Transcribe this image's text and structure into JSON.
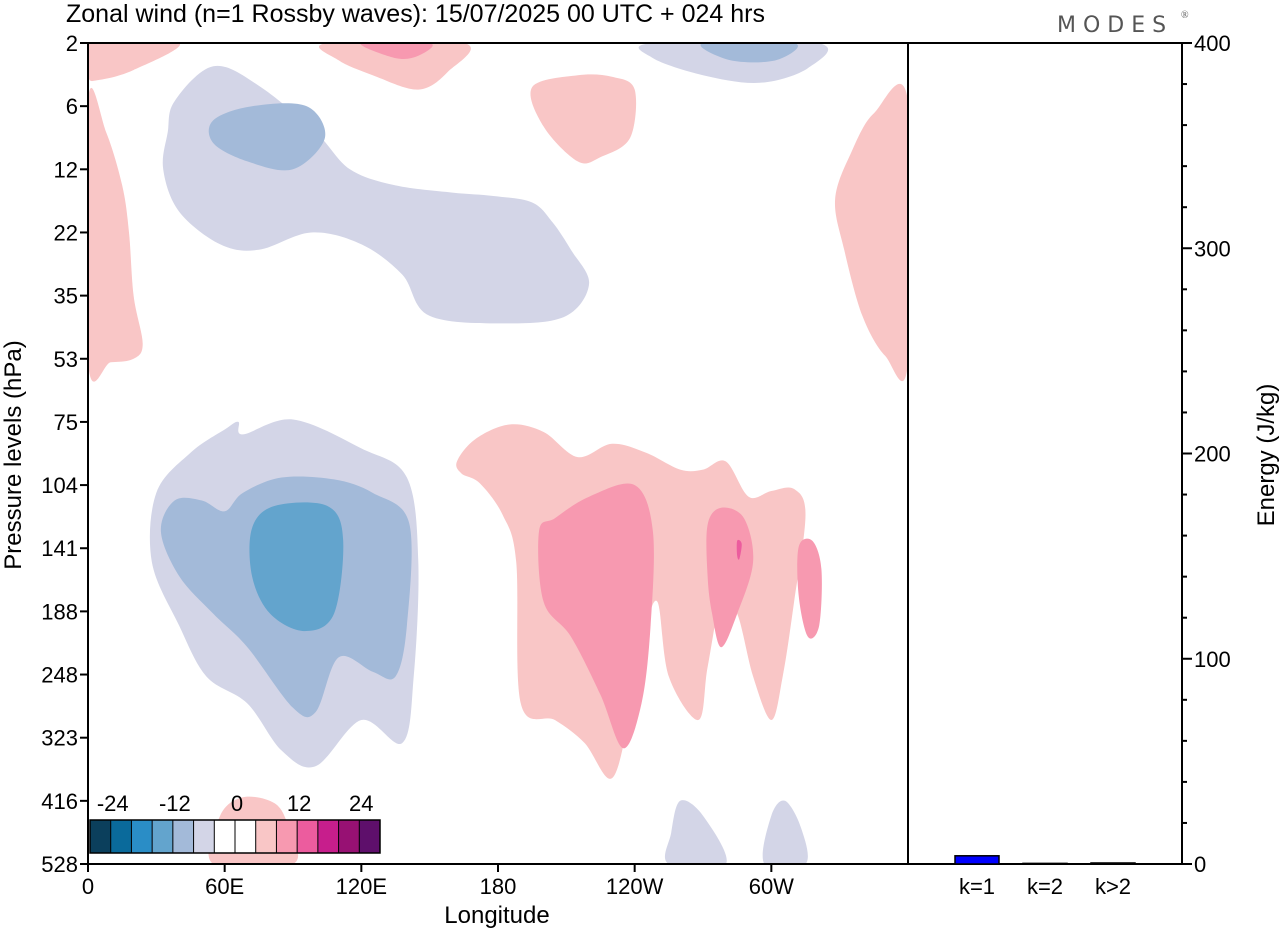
{
  "chart_data": [
    {
      "type": "heatmap",
      "title": "Zonal wind (n=1 Rossby waves):  15/07/2025  00 UTC  + 024 hrs",
      "brand": "MODES",
      "xlabel": "Longitude",
      "ylabel": "Pressure levels (hPa)",
      "x_ticks": [
        {
          "lon": 0,
          "label": "0"
        },
        {
          "lon": 60,
          "label": "60E"
        },
        {
          "lon": 120,
          "label": "120E"
        },
        {
          "lon": 180,
          "label": "180"
        },
        {
          "lon": 240,
          "label": "120W"
        },
        {
          "lon": 300,
          "label": "60W"
        }
      ],
      "xlim": [
        0,
        360
      ],
      "y_levels": [
        "2",
        "6",
        "12",
        "22",
        "35",
        "53",
        "75",
        "104",
        "141",
        "188",
        "248",
        "323",
        "416",
        "528"
      ],
      "colorbar": {
        "tick_labels": [
          "-24",
          "-12",
          "0",
          "12",
          "24"
        ],
        "colors": [
          "#0b3f5c",
          "#0a6a9b",
          "#2a8dc6",
          "#63a4cd",
          "#a3bad9",
          "#d3d5e7",
          "#ffffff",
          "#ffffff",
          "#f9c6c6",
          "#f799b0",
          "#ec5c9e",
          "#c71e8c",
          "#971173",
          "#5e0f6b"
        ]
      },
      "features": [
        {
          "name": "neg-upper-outer",
          "sign": -1,
          "level": 1,
          "points": [
            [
              38,
              5.5
            ],
            [
              55,
              3
            ],
            [
              75,
              4.2
            ],
            [
              100,
              8
            ],
            [
              115,
              12
            ],
            [
              135,
              14
            ],
            [
              160,
              15
            ],
            [
              178,
              15.5
            ],
            [
              195,
              16.5
            ],
            [
              204,
              20
            ],
            [
              212,
              25
            ],
            [
              220,
              32
            ],
            [
              210,
              40
            ],
            [
              185,
              42
            ],
            [
              150,
              40
            ],
            [
              138,
              30
            ],
            [
              120,
              24
            ],
            [
              98,
              22
            ],
            [
              75,
              25
            ],
            [
              58,
              24
            ],
            [
              40,
              18
            ],
            [
              33,
              12
            ],
            [
              35,
              8
            ]
          ]
        },
        {
          "name": "neg-upper-inner",
          "sign": -1,
          "level": 2,
          "points": [
            [
              55,
              7
            ],
            [
              72,
              6
            ],
            [
              96,
              6
            ],
            [
              104,
              8.5
            ],
            [
              90,
              12
            ],
            [
              70,
              11
            ],
            [
              55,
              9
            ]
          ]
        },
        {
          "name": "neg-top-right",
          "sign": -1,
          "level": 1,
          "points": [
            [
              248,
              2
            ],
            [
              320,
              2
            ],
            [
              316,
              3.1
            ],
            [
              295,
              4
            ],
            [
              270,
              3.5
            ],
            [
              248,
              2.6
            ]
          ]
        },
        {
          "name": "neg-top-right-inner",
          "sign": -1,
          "level": 2,
          "points": [
            [
              270,
              2
            ],
            [
              310,
              2
            ],
            [
              302,
              2.7
            ],
            [
              282,
              2.7
            ]
          ]
        },
        {
          "name": "neg-mid-outer",
          "sign": -1,
          "level": 1,
          "points": [
            [
              30,
              108
            ],
            [
              45,
              88
            ],
            [
              60,
              78
            ],
            [
              66,
              75
            ],
            [
              68,
              80
            ],
            [
              90,
              74
            ],
            [
              120,
              86
            ],
            [
              140,
              100
            ],
            [
              145,
              150
            ],
            [
              143,
              250
            ],
            [
              138,
              330
            ],
            [
              120,
              300
            ],
            [
              100,
              362
            ],
            [
              85,
              340
            ],
            [
              70,
              280
            ],
            [
              52,
              250
            ],
            [
              40,
              200
            ],
            [
              28,
              150
            ]
          ]
        },
        {
          "name": "neg-mid-mid",
          "sign": -1,
          "level": 2,
          "points": [
            [
              32,
              130
            ],
            [
              38,
              112
            ],
            [
              50,
              112
            ],
            [
              60,
              118
            ],
            [
              68,
              108
            ],
            [
              85,
              100
            ],
            [
              108,
              101
            ],
            [
              125,
              108
            ],
            [
              141,
              125
            ],
            [
              140,
              200
            ],
            [
              135,
              250
            ],
            [
              125,
              245
            ],
            [
              110,
              230
            ],
            [
              100,
              290
            ],
            [
              90,
              285
            ],
            [
              70,
              220
            ],
            [
              55,
              190
            ],
            [
              40,
              160
            ]
          ]
        },
        {
          "name": "neg-mid-inner",
          "sign": -1,
          "level": 3,
          "points": [
            [
              72,
              128
            ],
            [
              82,
              115
            ],
            [
              105,
              115
            ],
            [
              112,
              135
            ],
            [
              108,
              190
            ],
            [
              95,
              205
            ],
            [
              80,
              190
            ],
            [
              72,
              160
            ]
          ]
        },
        {
          "name": "neg-bottom-left",
          "sign": -1,
          "level": 1,
          "points": [
            [
              255,
              528
            ],
            [
              256,
              470
            ],
            [
              260,
              416
            ],
            [
              270,
              440
            ],
            [
              280,
              528
            ]
          ]
        },
        {
          "name": "neg-bottom-right",
          "sign": -1,
          "level": 1,
          "points": [
            [
              297,
              528
            ],
            [
              300,
              440
            ],
            [
              306,
              416
            ],
            [
              313,
              460
            ],
            [
              315,
              528
            ]
          ]
        },
        {
          "name": "pos-left-upper",
          "sign": 1,
          "level": 1,
          "points": [
            [
              0,
              5.5
            ],
            [
              8,
              8
            ],
            [
              15,
              14
            ],
            [
              18,
              22
            ],
            [
              20,
              35
            ],
            [
              24,
              48
            ],
            [
              20,
              53
            ],
            [
              10,
              54
            ],
            [
              0,
              54
            ]
          ]
        },
        {
          "name": "pos-top-left",
          "sign": 1,
          "level": 1,
          "points": [
            [
              0,
              2
            ],
            [
              40,
              2
            ],
            [
              20,
              3.2
            ],
            [
              5,
              3.8
            ],
            [
              0,
              3.6
            ]
          ]
        },
        {
          "name": "pos-top-mid",
          "sign": 1,
          "level": 1,
          "points": [
            [
              105,
              2
            ],
            [
              165,
              2
            ],
            [
              158,
              3.3
            ],
            [
              145,
              4.5
            ],
            [
              125,
              3.5
            ],
            [
              110,
              2.7
            ]
          ]
        },
        {
          "name": "pos-top-mid-inner",
          "sign": 1,
          "level": 2,
          "points": [
            [
              120,
              2
            ],
            [
              150,
              2
            ],
            [
              145,
              2.5
            ],
            [
              135,
              2.6
            ]
          ]
        },
        {
          "name": "pos-upper-mid",
          "sign": 1,
          "level": 1,
          "points": [
            [
              195,
              4.3
            ],
            [
              215,
              3.5
            ],
            [
              230,
              3.6
            ],
            [
              240,
              4.5
            ],
            [
              238,
              8.5
            ],
            [
              225,
              10.5
            ],
            [
              215,
              11
            ],
            [
              200,
              7.5
            ]
          ]
        },
        {
          "name": "pos-right-edge",
          "sign": 1,
          "level": 1,
          "points": [
            [
              360,
              5.5
            ],
            [
              345,
              6.5
            ],
            [
              335,
              10
            ],
            [
              328,
              16
            ],
            [
              332,
              25
            ],
            [
              340,
              40
            ],
            [
              350,
              52
            ],
            [
              360,
              54
            ]
          ]
        },
        {
          "name": "pos-mid-outer",
          "sign": 1,
          "level": 1,
          "points": [
            [
              162,
              92
            ],
            [
              170,
              82
            ],
            [
              185,
              76
            ],
            [
              200,
              79
            ],
            [
              215,
              90
            ],
            [
              230,
              84
            ],
            [
              245,
              88
            ],
            [
              260,
              96
            ],
            [
              270,
              96
            ],
            [
              280,
              92
            ],
            [
              290,
              110
            ],
            [
              300,
              107
            ],
            [
              310,
              106
            ],
            [
              315,
              120
            ],
            [
              310,
              180
            ],
            [
              305,
              250
            ],
            [
              300,
              300
            ],
            [
              292,
              250
            ],
            [
              285,
              190
            ],
            [
              278,
              180
            ],
            [
              272,
              240
            ],
            [
              268,
              300
            ],
            [
              255,
              250
            ],
            [
              250,
              180
            ],
            [
              244,
              210
            ],
            [
              238,
              290
            ],
            [
              230,
              380
            ],
            [
              218,
              330
            ],
            [
              205,
              300
            ],
            [
              190,
              280
            ],
            [
              188,
              150
            ],
            [
              182,
              120
            ],
            [
              172,
              103
            ],
            [
              164,
              98
            ]
          ]
        },
        {
          "name": "pos-mid-center",
          "sign": 1,
          "level": 2,
          "points": [
            [
              198,
              130
            ],
            [
              205,
              122
            ],
            [
              220,
              110
            ],
            [
              240,
              104
            ],
            [
              248,
              130
            ],
            [
              247,
              200
            ],
            [
              243,
              280
            ],
            [
              235,
              337
            ],
            [
              225,
              270
            ],
            [
              212,
              210
            ],
            [
              200,
              180
            ]
          ]
        },
        {
          "name": "pos-mid-right1",
          "sign": 1,
          "level": 2,
          "points": [
            [
              272,
              126
            ],
            [
              278,
              116
            ],
            [
              288,
              122
            ],
            [
              292,
              150
            ],
            [
              285,
              190
            ],
            [
              278,
              220
            ],
            [
              274,
              190
            ],
            [
              272,
              160
            ]
          ]
        },
        {
          "name": "pos-mid-right1-core",
          "sign": 1,
          "level": 3,
          "points": [
            [
              285,
              136
            ],
            [
              287,
              138
            ],
            [
              286,
              148
            ],
            [
              285,
              146
            ]
          ]
        },
        {
          "name": "pos-mid-right2",
          "sign": 1,
          "level": 2,
          "points": [
            [
              312,
              140
            ],
            [
              318,
              136
            ],
            [
              322,
              155
            ],
            [
              321,
              200
            ],
            [
              316,
              210
            ],
            [
              312,
              175
            ]
          ]
        },
        {
          "name": "pos-bottom-small",
          "sign": 1,
          "level": 1,
          "points": [
            [
              55,
              528
            ],
            [
              58,
              440
            ],
            [
              68,
              410
            ],
            [
              82,
              420
            ],
            [
              88,
              460
            ],
            [
              90,
              528
            ]
          ]
        }
      ]
    },
    {
      "type": "bar",
      "ylabel": "Energy (J/kg)",
      "ylim": [
        0,
        400
      ],
      "y_ticks": [
        0,
        100,
        200,
        300,
        400
      ],
      "categories": [
        "k=1",
        "k=2",
        "k>2"
      ],
      "values": [
        4,
        0.3,
        0.5
      ],
      "bar_color": "#0000ff"
    }
  ]
}
